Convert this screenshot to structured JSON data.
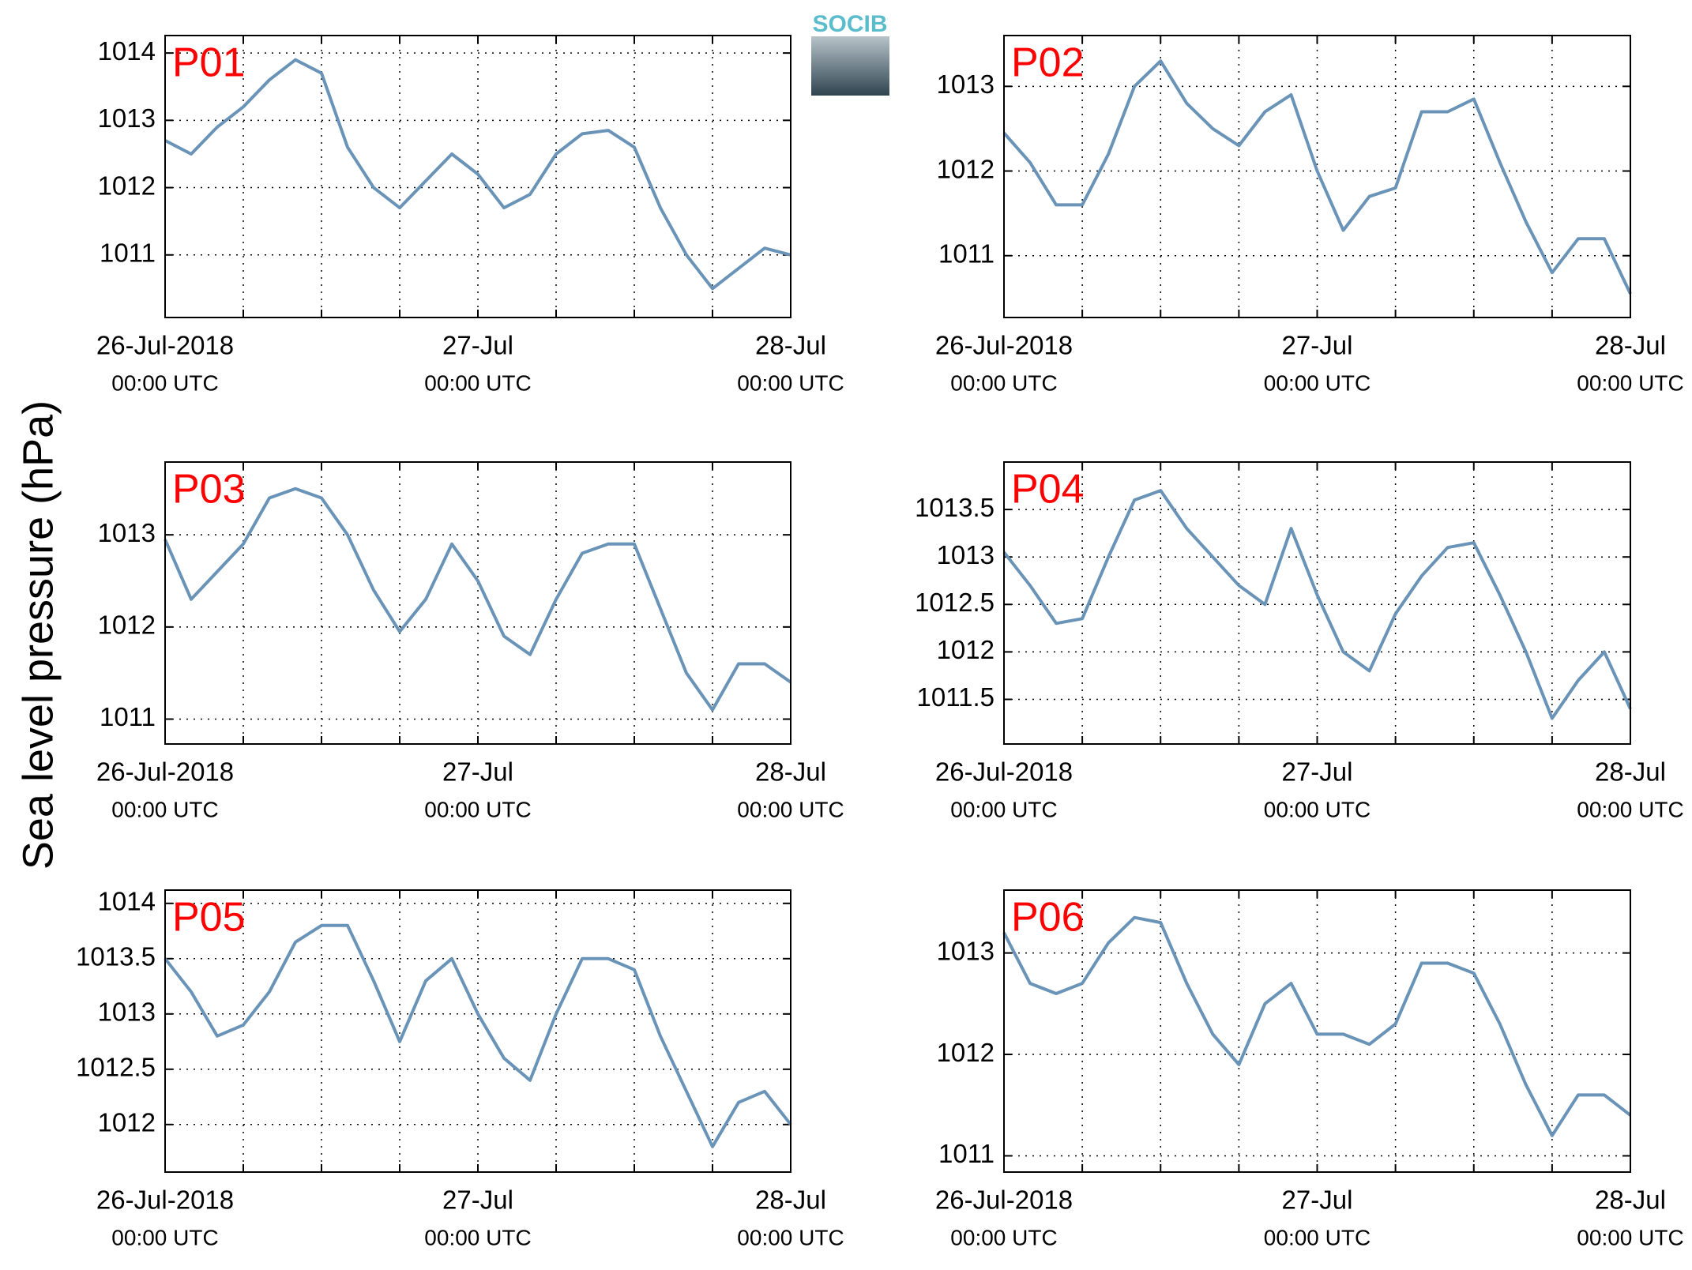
{
  "ylabel": "Sea level pressure (hPa)",
  "logo": "SOCIB",
  "chart_data": [
    {
      "type": "line",
      "title": "P01",
      "color": "#6a93b8",
      "grid": true,
      "x": [
        "2018-07-26T00:00",
        "2018-07-26T02:00",
        "2018-07-26T04:00",
        "2018-07-26T06:00",
        "2018-07-26T08:00",
        "2018-07-26T10:00",
        "2018-07-26T12:00",
        "2018-07-26T14:00",
        "2018-07-26T16:00",
        "2018-07-26T18:00",
        "2018-07-26T20:00",
        "2018-07-26T22:00",
        "2018-07-27T00:00",
        "2018-07-27T02:00",
        "2018-07-27T04:00",
        "2018-07-27T06:00",
        "2018-07-27T08:00",
        "2018-07-27T10:00",
        "2018-07-27T12:00",
        "2018-07-27T14:00",
        "2018-07-27T16:00",
        "2018-07-27T18:00",
        "2018-07-27T20:00",
        "2018-07-27T22:00",
        "2018-07-28T00:00"
      ],
      "values": [
        1012.7,
        1012.5,
        1012.9,
        1013.2,
        1013.6,
        1013.9,
        1013.7,
        1012.6,
        1012.0,
        1011.7,
        1012.1,
        1012.5,
        1012.2,
        1011.7,
        1011.9,
        1012.5,
        1012.8,
        1012.85,
        1012.6,
        1011.7,
        1011.0,
        1010.5,
        1010.8,
        1011.1,
        1011.0
      ],
      "xlim": [
        "2018-07-26T00:00",
        "2018-07-28T00:00"
      ],
      "xticks": [
        {
          "value": "2018-07-26T00:00",
          "label": [
            "26-Jul-2018",
            "00:00 UTC"
          ]
        },
        "2018-07-26T06:00",
        "2018-07-26T12:00",
        "2018-07-26T18:00",
        {
          "value": "2018-07-27T00:00",
          "label": [
            "27-Jul",
            "00:00 UTC"
          ]
        },
        "2018-07-27T06:00",
        "2018-07-27T12:00",
        "2018-07-27T18:00",
        {
          "value": "2018-07-28T00:00",
          "label": [
            "28-Jul",
            "00:00 UTC"
          ]
        }
      ],
      "ylim": [
        1010.07,
        1014.26
      ],
      "yticks": [
        1011,
        1012,
        1013,
        1014
      ]
    },
    {
      "type": "line",
      "title": "P02",
      "color": "#6a93b8",
      "grid": true,
      "x": [
        "2018-07-26T00:00",
        "2018-07-26T02:00",
        "2018-07-26T04:00",
        "2018-07-26T06:00",
        "2018-07-26T08:00",
        "2018-07-26T10:00",
        "2018-07-26T12:00",
        "2018-07-26T14:00",
        "2018-07-26T16:00",
        "2018-07-26T18:00",
        "2018-07-26T20:00",
        "2018-07-26T22:00",
        "2018-07-27T00:00",
        "2018-07-27T02:00",
        "2018-07-27T04:00",
        "2018-07-27T06:00",
        "2018-07-27T08:00",
        "2018-07-27T10:00",
        "2018-07-27T12:00",
        "2018-07-27T14:00",
        "2018-07-27T16:00",
        "2018-07-27T18:00",
        "2018-07-27T20:00",
        "2018-07-27T22:00",
        "2018-07-28T00:00"
      ],
      "values": [
        1012.45,
        1012.1,
        1011.6,
        1011.6,
        1012.2,
        1013.0,
        1013.3,
        1012.8,
        1012.5,
        1012.3,
        1012.7,
        1012.9,
        1012.0,
        1011.3,
        1011.7,
        1011.8,
        1012.7,
        1012.7,
        1012.85,
        1012.1,
        1011.4,
        1010.8,
        1011.2,
        1011.2,
        1010.55
      ],
      "xlim": [
        "2018-07-26T00:00",
        "2018-07-28T00:00"
      ],
      "xticks": [
        {
          "value": "2018-07-26T00:00",
          "label": [
            "26-Jul-2018",
            "00:00 UTC"
          ]
        },
        "2018-07-26T06:00",
        "2018-07-26T12:00",
        "2018-07-26T18:00",
        {
          "value": "2018-07-27T00:00",
          "label": [
            "27-Jul",
            "00:00 UTC"
          ]
        },
        "2018-07-27T06:00",
        "2018-07-27T12:00",
        "2018-07-27T18:00",
        {
          "value": "2018-07-28T00:00",
          "label": [
            "28-Jul",
            "00:00 UTC"
          ]
        }
      ],
      "ylim": [
        1010.27,
        1013.6
      ],
      "yticks": [
        1011,
        1012,
        1013
      ]
    },
    {
      "type": "line",
      "title": "P03",
      "color": "#6a93b8",
      "grid": true,
      "x": [
        "2018-07-26T00:00",
        "2018-07-26T02:00",
        "2018-07-26T04:00",
        "2018-07-26T06:00",
        "2018-07-26T08:00",
        "2018-07-26T10:00",
        "2018-07-26T12:00",
        "2018-07-26T14:00",
        "2018-07-26T16:00",
        "2018-07-26T18:00",
        "2018-07-26T20:00",
        "2018-07-26T22:00",
        "2018-07-27T00:00",
        "2018-07-27T02:00",
        "2018-07-27T04:00",
        "2018-07-27T06:00",
        "2018-07-27T08:00",
        "2018-07-27T10:00",
        "2018-07-27T12:00",
        "2018-07-27T14:00",
        "2018-07-27T16:00",
        "2018-07-27T18:00",
        "2018-07-27T20:00",
        "2018-07-27T22:00",
        "2018-07-28T00:00"
      ],
      "values": [
        1012.95,
        1012.3,
        1012.6,
        1012.9,
        1013.4,
        1013.5,
        1013.4,
        1013.0,
        1012.4,
        1011.95,
        1012.3,
        1012.9,
        1012.5,
        1011.9,
        1011.7,
        1012.3,
        1012.8,
        1012.9,
        1012.9,
        1012.2,
        1011.5,
        1011.1,
        1011.6,
        1011.6,
        1011.4
      ],
      "xlim": [
        "2018-07-26T00:00",
        "2018-07-28T00:00"
      ],
      "xticks": [
        {
          "value": "2018-07-26T00:00",
          "label": [
            "26-Jul-2018",
            "00:00 UTC"
          ]
        },
        "2018-07-26T06:00",
        "2018-07-26T12:00",
        "2018-07-26T18:00",
        {
          "value": "2018-07-27T00:00",
          "label": [
            "27-Jul",
            "00:00 UTC"
          ]
        },
        "2018-07-27T06:00",
        "2018-07-27T12:00",
        "2018-07-27T18:00",
        {
          "value": "2018-07-28T00:00",
          "label": [
            "28-Jul",
            "00:00 UTC"
          ]
        }
      ],
      "ylim": [
        1010.73,
        1013.79
      ],
      "yticks": [
        1011,
        1012,
        1013
      ]
    },
    {
      "type": "line",
      "title": "P04",
      "color": "#6a93b8",
      "grid": true,
      "x": [
        "2018-07-26T00:00",
        "2018-07-26T02:00",
        "2018-07-26T04:00",
        "2018-07-26T06:00",
        "2018-07-26T08:00",
        "2018-07-26T10:00",
        "2018-07-26T12:00",
        "2018-07-26T14:00",
        "2018-07-26T16:00",
        "2018-07-26T18:00",
        "2018-07-26T20:00",
        "2018-07-26T22:00",
        "2018-07-27T00:00",
        "2018-07-27T02:00",
        "2018-07-27T04:00",
        "2018-07-27T06:00",
        "2018-07-27T08:00",
        "2018-07-27T10:00",
        "2018-07-27T12:00",
        "2018-07-27T14:00",
        "2018-07-27T16:00",
        "2018-07-27T18:00",
        "2018-07-27T20:00",
        "2018-07-27T22:00",
        "2018-07-28T00:00"
      ],
      "values": [
        1013.05,
        1012.7,
        1012.3,
        1012.35,
        1013.0,
        1013.6,
        1013.7,
        1013.3,
        1013.0,
        1012.7,
        1012.5,
        1013.3,
        1012.6,
        1012.0,
        1011.8,
        1012.4,
        1012.8,
        1013.1,
        1013.15,
        1012.6,
        1012.0,
        1011.3,
        1011.7,
        1012.0,
        1011.4
      ],
      "xlim": [
        "2018-07-26T00:00",
        "2018-07-28T00:00"
      ],
      "xticks": [
        {
          "value": "2018-07-26T00:00",
          "label": [
            "26-Jul-2018",
            "00:00 UTC"
          ]
        },
        "2018-07-26T06:00",
        "2018-07-26T12:00",
        "2018-07-26T18:00",
        {
          "value": "2018-07-27T00:00",
          "label": [
            "27-Jul",
            "00:00 UTC"
          ]
        },
        "2018-07-27T06:00",
        "2018-07-27T12:00",
        "2018-07-27T18:00",
        {
          "value": "2018-07-28T00:00",
          "label": [
            "28-Jul",
            "00:00 UTC"
          ]
        }
      ],
      "ylim": [
        1011.03,
        1014.0
      ],
      "yticks": [
        1011.5,
        1012,
        1012.5,
        1013,
        1013.5
      ]
    },
    {
      "type": "line",
      "title": "P05",
      "color": "#6a93b8",
      "grid": true,
      "x": [
        "2018-07-26T00:00",
        "2018-07-26T02:00",
        "2018-07-26T04:00",
        "2018-07-26T06:00",
        "2018-07-26T08:00",
        "2018-07-26T10:00",
        "2018-07-26T12:00",
        "2018-07-26T14:00",
        "2018-07-26T16:00",
        "2018-07-26T18:00",
        "2018-07-26T20:00",
        "2018-07-26T22:00",
        "2018-07-27T00:00",
        "2018-07-27T02:00",
        "2018-07-27T04:00",
        "2018-07-27T06:00",
        "2018-07-27T08:00",
        "2018-07-27T10:00",
        "2018-07-27T12:00",
        "2018-07-27T14:00",
        "2018-07-27T16:00",
        "2018-07-27T18:00",
        "2018-07-27T20:00",
        "2018-07-27T22:00",
        "2018-07-28T00:00"
      ],
      "values": [
        1013.5,
        1013.2,
        1012.8,
        1012.9,
        1013.2,
        1013.65,
        1013.8,
        1013.8,
        1013.3,
        1012.75,
        1013.3,
        1013.5,
        1013.0,
        1012.6,
        1012.4,
        1013.0,
        1013.5,
        1013.5,
        1013.4,
        1012.8,
        1012.3,
        1011.8,
        1012.2,
        1012.3,
        1012.0
      ],
      "xlim": [
        "2018-07-26T00:00",
        "2018-07-28T00:00"
      ],
      "xticks": [
        {
          "value": "2018-07-26T00:00",
          "label": [
            "26-Jul-2018",
            "00:00 UTC"
          ]
        },
        "2018-07-26T06:00",
        "2018-07-26T12:00",
        "2018-07-26T18:00",
        {
          "value": "2018-07-27T00:00",
          "label": [
            "27-Jul",
            "00:00 UTC"
          ]
        },
        "2018-07-27T06:00",
        "2018-07-27T12:00",
        "2018-07-27T18:00",
        {
          "value": "2018-07-28T00:00",
          "label": [
            "28-Jul",
            "00:00 UTC"
          ]
        }
      ],
      "ylim": [
        1011.57,
        1014.12
      ],
      "yticks": [
        1012,
        1012.5,
        1013,
        1013.5,
        1014
      ]
    },
    {
      "type": "line",
      "title": "P06",
      "color": "#6a93b8",
      "grid": true,
      "x": [
        "2018-07-26T00:00",
        "2018-07-26T02:00",
        "2018-07-26T04:00",
        "2018-07-26T06:00",
        "2018-07-26T08:00",
        "2018-07-26T10:00",
        "2018-07-26T12:00",
        "2018-07-26T14:00",
        "2018-07-26T16:00",
        "2018-07-26T18:00",
        "2018-07-26T20:00",
        "2018-07-26T22:00",
        "2018-07-27T00:00",
        "2018-07-27T02:00",
        "2018-07-27T04:00",
        "2018-07-27T06:00",
        "2018-07-27T08:00",
        "2018-07-27T10:00",
        "2018-07-27T12:00",
        "2018-07-27T14:00",
        "2018-07-27T16:00",
        "2018-07-27T18:00",
        "2018-07-27T20:00",
        "2018-07-27T22:00",
        "2018-07-28T00:00"
      ],
      "values": [
        1013.2,
        1012.7,
        1012.6,
        1012.7,
        1013.1,
        1013.35,
        1013.3,
        1012.7,
        1012.2,
        1011.9,
        1012.5,
        1012.7,
        1012.2,
        1012.2,
        1012.1,
        1012.3,
        1012.9,
        1012.9,
        1012.8,
        1012.3,
        1011.7,
        1011.2,
        1011.6,
        1011.6,
        1011.4
      ],
      "xlim": [
        "2018-07-26T00:00",
        "2018-07-28T00:00"
      ],
      "xticks": [
        {
          "value": "2018-07-26T00:00",
          "label": [
            "26-Jul-2018",
            "00:00 UTC"
          ]
        },
        "2018-07-26T06:00",
        "2018-07-26T12:00",
        "2018-07-26T18:00",
        {
          "value": "2018-07-27T00:00",
          "label": [
            "27-Jul",
            "00:00 UTC"
          ]
        },
        "2018-07-27T06:00",
        "2018-07-27T12:00",
        "2018-07-27T18:00",
        {
          "value": "2018-07-28T00:00",
          "label": [
            "28-Jul",
            "00:00 UTC"
          ]
        }
      ],
      "ylim": [
        1010.84,
        1013.62
      ],
      "yticks": [
        1011,
        1012,
        1013
      ]
    }
  ]
}
